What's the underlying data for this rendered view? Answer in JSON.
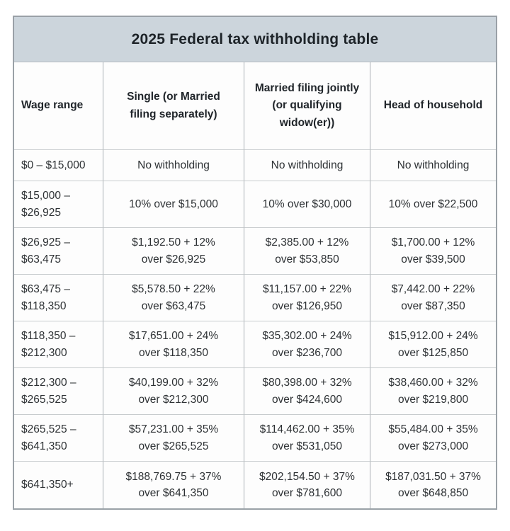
{
  "title": "2025 Federal tax withholding table",
  "colors": {
    "title_band_bg": "#ccd5dc",
    "outer_border": "#9aa1a7",
    "vertical_border": "#a9afb4",
    "horizontal_border": "#c8ccce",
    "text": "#2d3134",
    "page_bg": "#ffffff"
  },
  "table": {
    "columns": [
      {
        "id": "wage_range",
        "lines": [
          "Wage range"
        ]
      },
      {
        "id": "single",
        "lines": [
          "Single (or Married",
          "filing separately)"
        ]
      },
      {
        "id": "married_filing_jointly",
        "lines": [
          "Married filing jointly",
          "(or qualifying",
          "widow(er))"
        ]
      },
      {
        "id": "head_of_household",
        "lines": [
          "Head of household"
        ]
      }
    ],
    "rows": [
      {
        "wage": [
          "$0 – $15,000"
        ],
        "single": [
          "No withholding"
        ],
        "married_jointly": [
          "No withholding"
        ],
        "head_of_household": [
          "No withholding"
        ]
      },
      {
        "wage": [
          "$15,000 –",
          "$26,925"
        ],
        "single": [
          "10% over $15,000"
        ],
        "married_jointly": [
          "10% over $30,000"
        ],
        "head_of_household": [
          "10% over $22,500"
        ]
      },
      {
        "wage": [
          "$26,925 –",
          "$63,475"
        ],
        "single": [
          "$1,192.50 + 12%",
          "over $26,925"
        ],
        "married_jointly": [
          "$2,385.00 + 12%",
          "over $53,850"
        ],
        "head_of_household": [
          "$1,700.00 + 12%",
          "over $39,500"
        ]
      },
      {
        "wage": [
          "$63,475 –",
          "$118,350"
        ],
        "single": [
          "$5,578.50 + 22%",
          "over $63,475"
        ],
        "married_jointly": [
          "$11,157.00 + 22%",
          "over $126,950"
        ],
        "head_of_household": [
          "$7,442.00 + 22%",
          "over $87,350"
        ]
      },
      {
        "wage": [
          "$118,350 –",
          "$212,300"
        ],
        "single": [
          "$17,651.00 + 24%",
          "over $118,350"
        ],
        "married_jointly": [
          "$35,302.00 + 24%",
          "over $236,700"
        ],
        "head_of_household": [
          "$15,912.00 + 24%",
          "over $125,850"
        ]
      },
      {
        "wage": [
          "$212,300 –",
          "$265,525"
        ],
        "single": [
          "$40,199.00 + 32%",
          "over $212,300"
        ],
        "married_jointly": [
          "$80,398.00 + 32%",
          "over $424,600"
        ],
        "head_of_household": [
          "$38,460.00 + 32%",
          "over $219,800"
        ]
      },
      {
        "wage": [
          "$265,525 –",
          "$641,350"
        ],
        "single": [
          "$57,231.00 + 35%",
          "over $265,525"
        ],
        "married_jointly": [
          "$114,462.00 + 35%",
          "over $531,050"
        ],
        "head_of_household": [
          "$55,484.00 + 35%",
          "over $273,000"
        ]
      },
      {
        "wage": [
          "$641,350+"
        ],
        "single": [
          "$188,769.75 + 37%",
          "over $641,350"
        ],
        "married_jointly": [
          "$202,154.50 + 37%",
          "over $781,600"
        ],
        "head_of_household": [
          "$187,031.50 + 37%",
          "over $648,850"
        ]
      }
    ]
  }
}
